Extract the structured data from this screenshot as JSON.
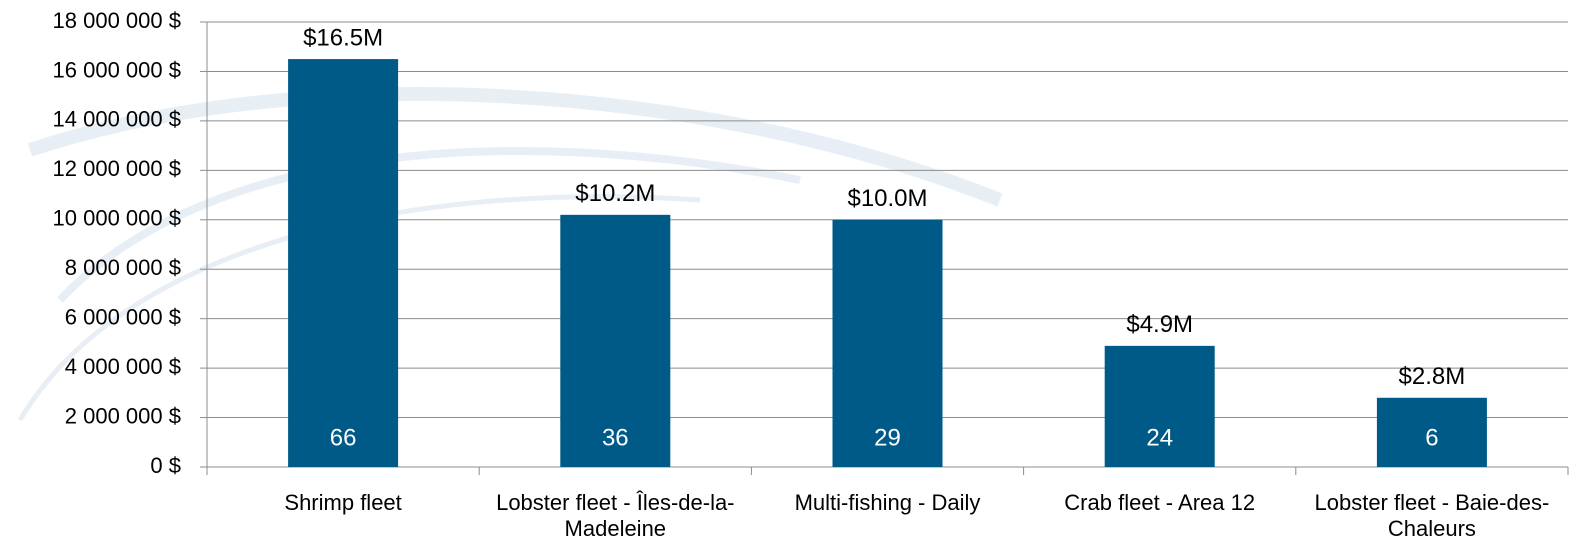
{
  "chart_data": {
    "type": "bar",
    "categories": [
      "Shrimp fleet",
      "Lobster fleet - Îles-de-la-Madeleine",
      "Multi-fishing - Daily",
      "Crab fleet - Area 12",
      "Lobster fleet - Baie-des-Chaleurs"
    ],
    "values": [
      16500000,
      10200000,
      10000000,
      4900000,
      2800000
    ],
    "value_labels": [
      "$16.5M",
      "$10.2M",
      "$10.0M",
      "$4.9M",
      "$2.8M"
    ],
    "bar_counts": [
      66,
      36,
      29,
      24,
      6
    ],
    "color": "#005a87",
    "ylim": [
      0,
      18000000
    ],
    "yticks": [
      {
        "value": 0,
        "label": "0 $"
      },
      {
        "value": 2000000,
        "label": "2 000 000 $"
      },
      {
        "value": 4000000,
        "label": "4 000 000 $"
      },
      {
        "value": 6000000,
        "label": "6 000 000 $"
      },
      {
        "value": 8000000,
        "label": "8 000 000 $"
      },
      {
        "value": 10000000,
        "label": "10 000 000 $"
      },
      {
        "value": 12000000,
        "label": "12 000 000 $"
      },
      {
        "value": 14000000,
        "label": "14 000 000 $"
      },
      {
        "value": 16000000,
        "label": "16 000 000 $"
      },
      {
        "value": 18000000,
        "label": "18 000 000 $"
      }
    ],
    "grid": true
  }
}
